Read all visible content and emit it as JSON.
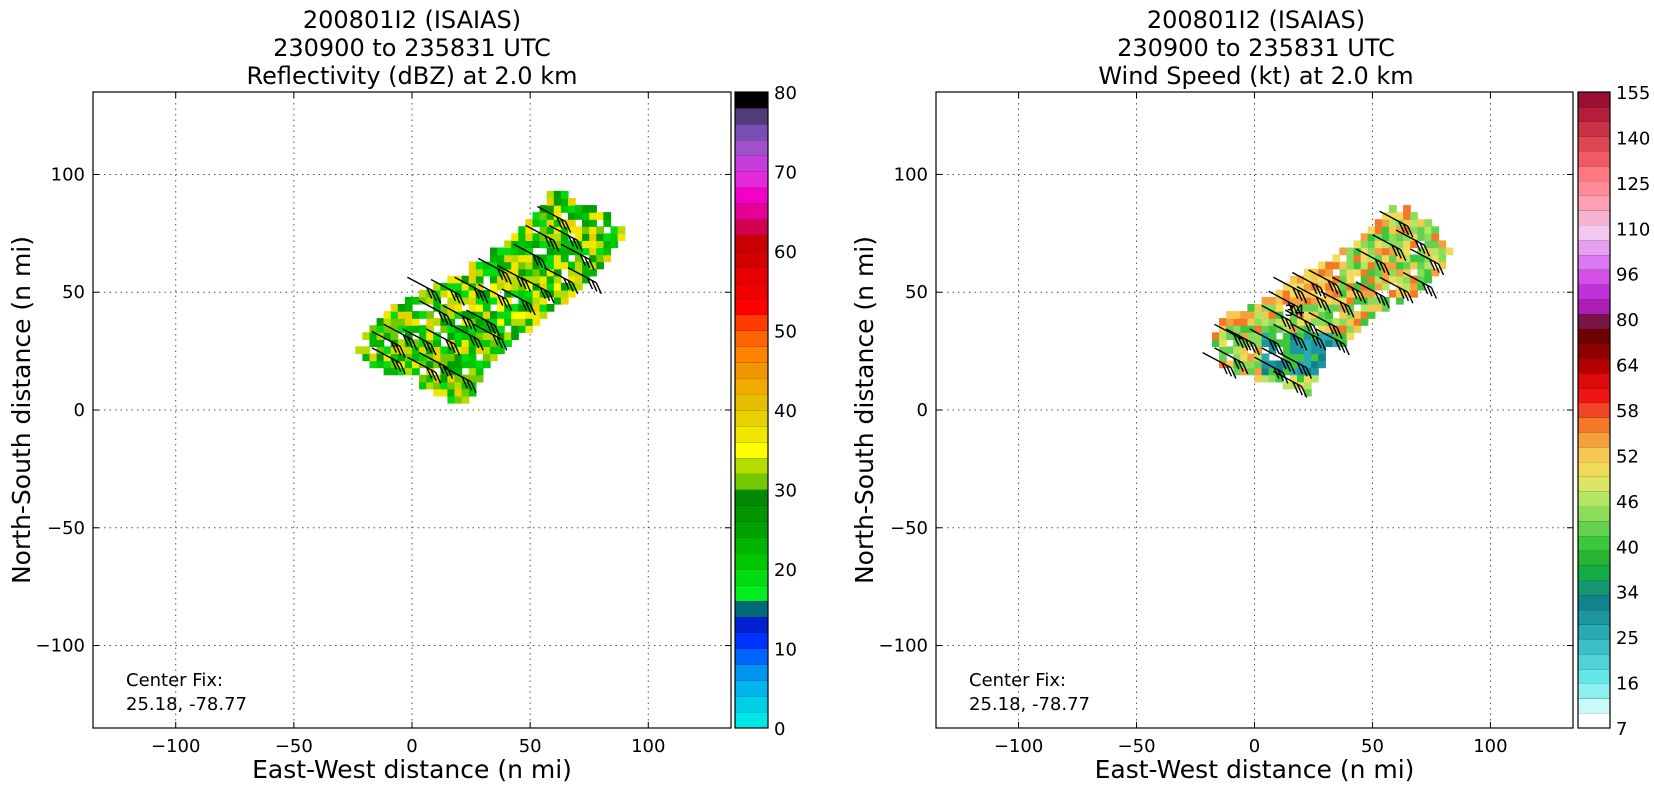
{
  "panels": [
    {
      "title_lines": [
        "200801I2 (ISAIAS)",
        "230900 to 235831 UTC",
        "Reflectivity (dBZ) at 2.0 km"
      ],
      "xlabel": "East-West distance (n mi)",
      "ylabel": "North-South distance (n mi)",
      "center_fix_label": "Center Fix:",
      "center_fix_value": "25.18, -78.77",
      "colorbar": {
        "ticks": [
          {
            "label": "80",
            "index": 16
          },
          {
            "label": "70",
            "index": 14
          },
          {
            "label": "60",
            "index": 12
          },
          {
            "label": "50",
            "index": 10
          },
          {
            "label": "40",
            "index": 8
          },
          {
            "label": "30",
            "index": 6
          },
          {
            "label": "20",
            "index": 4
          },
          {
            "label": "10",
            "index": 2
          },
          {
            "label": "0",
            "index": 0
          }
        ],
        "colors": [
          "#00e6e6",
          "#00cfe6",
          "#00b4f0",
          "#0096f0",
          "#0064ff",
          "#0032ff",
          "#0020d0",
          "#006a78",
          "#00ee20",
          "#00dc10",
          "#00c800",
          "#00b400",
          "#00a000",
          "#009600",
          "#008a00",
          "#74c800",
          "#b4dc00",
          "#ffff00",
          "#f0e600",
          "#e6d200",
          "#e6be00",
          "#f0aa00",
          "#f09600",
          "#ff8200",
          "#ff6400",
          "#ff3c00",
          "#ff0000",
          "#f00000",
          "#e60000",
          "#d20000",
          "#c80000",
          "#d20050",
          "#e60096",
          "#f000c8",
          "#e628dc",
          "#c83cdc",
          "#a050c8",
          "#7850b4",
          "#503c78",
          "#000000"
        ]
      },
      "annotation": ""
    },
    {
      "title_lines": [
        "200801I2 (ISAIAS)",
        "230900 to 235831 UTC",
        "Wind Speed (kt) at 2.0 km"
      ],
      "xlabel": "East-West distance (n mi)",
      "ylabel": "North-South distance (n mi)",
      "center_fix_label": "Center Fix:",
      "center_fix_value": "25.18, -78.77",
      "colorbar": {
        "ticks": [
          {
            "label": "155",
            "index": 25
          },
          {
            "label": "140",
            "index": 23
          },
          {
            "label": "125",
            "index": 21
          },
          {
            "label": "110",
            "index": 19
          },
          {
            "label": "96",
            "index": 17
          },
          {
            "label": "80",
            "index": 15
          },
          {
            "label": "64",
            "index": 13
          },
          {
            "label": "58",
            "index": 11
          },
          {
            "label": "52",
            "index": 9
          },
          {
            "label": "46",
            "index": 7
          },
          {
            "label": "40",
            "index": 5
          },
          {
            "label": "34",
            "index": 3
          },
          {
            "label": "25",
            "index": 1
          },
          {
            "label": "16",
            "index": 0
          },
          {
            "label": "7",
            "index": 0
          }
        ],
        "colors": [
          "#ffffff",
          "#c8fafa",
          "#8cf0f0",
          "#64e6e6",
          "#50d2d8",
          "#3cbec8",
          "#28aab4",
          "#1e96a0",
          "#14828c",
          "#14966e",
          "#14aa46",
          "#28b432",
          "#3cc83c",
          "#64d250",
          "#8cdc5a",
          "#b4e664",
          "#dce664",
          "#f0dc5a",
          "#f5c850",
          "#f5a03c",
          "#f57828",
          "#f04628",
          "#f01414",
          "#dc0a0a",
          "#b40000",
          "#8c0000",
          "#6e0000",
          "#781446",
          "#aa1eb4",
          "#be32dc",
          "#d250e6",
          "#dc78f0",
          "#e6a0f0",
          "#f0c8f0",
          "#f5b4d2",
          "#ffa0b4",
          "#ff8c96",
          "#ff7882",
          "#f05a64",
          "#dc4650",
          "#c83246",
          "#b41e3c",
          "#9a1034"
        ]
      },
      "annotation": "34"
    }
  ],
  "chart_data": [
    {
      "type": "heatmap",
      "title": "200801I2 (ISAIAS) 230900 to 235831 UTC Reflectivity (dBZ) at 2.0 km",
      "xlabel": "East-West distance (n mi)",
      "ylabel": "North-South distance (n mi)",
      "xlim": [
        -135,
        135
      ],
      "ylim": [
        -135,
        135
      ],
      "xticks": [
        -100,
        -50,
        0,
        50,
        100
      ],
      "yticks": [
        -100,
        -50,
        0,
        50,
        100
      ],
      "grid": true,
      "colorbar_range": [
        0,
        80
      ],
      "colorbar_unit": "dBZ",
      "center_fix": [
        25.18,
        -78.77
      ],
      "echo_region": [
        [
          -25,
          22
        ],
        [
          -20,
          32
        ],
        [
          -10,
          42
        ],
        [
          5,
          50
        ],
        [
          20,
          58
        ],
        [
          35,
          68
        ],
        [
          50,
          80
        ],
        [
          58,
          92
        ],
        [
          70,
          88
        ],
        [
          90,
          76
        ],
        [
          85,
          68
        ],
        [
          75,
          55
        ],
        [
          65,
          45
        ],
        [
          55,
          38
        ],
        [
          45,
          30
        ],
        [
          35,
          22
        ],
        [
          28,
          15
        ],
        [
          25,
          5
        ],
        [
          20,
          0
        ],
        [
          10,
          4
        ],
        [
          0,
          10
        ],
        [
          -10,
          14
        ],
        [
          -20,
          18
        ]
      ],
      "barbs": [
        [
          65,
          80
        ],
        [
          70,
          72
        ],
        [
          60,
          72
        ],
        [
          75,
          64
        ],
        [
          55,
          64
        ],
        [
          78,
          54
        ],
        [
          68,
          54
        ],
        [
          58,
          50
        ],
        [
          48,
          55
        ],
        [
          40,
          58
        ],
        [
          50,
          45
        ],
        [
          40,
          47
        ],
        [
          30,
          50
        ],
        [
          20,
          49
        ],
        [
          10,
          50
        ],
        [
          35,
          36
        ],
        [
          25,
          38
        ],
        [
          15,
          40
        ],
        [
          38,
          30
        ],
        [
          28,
          30
        ],
        [
          18,
          28
        ],
        [
          8,
          28
        ],
        [
          0,
          30
        ],
        [
          -5,
          27
        ],
        [
          15,
          18
        ],
        [
          10,
          16
        ],
        [
          25,
          12
        ],
        [
          -5,
          20
        ]
      ]
    },
    {
      "type": "heatmap",
      "title": "200801I2 (ISAIAS) 230900 to 235831 UTC Wind Speed (kt) at 2.0 km",
      "xlabel": "East-West distance (n mi)",
      "ylabel": "North-South distance (n mi)",
      "xlim": [
        -135,
        135
      ],
      "ylim": [
        -135,
        135
      ],
      "xticks": [
        -100,
        -50,
        0,
        50,
        100
      ],
      "yticks": [
        -100,
        -50,
        0,
        50,
        100
      ],
      "grid": true,
      "colorbar_range": [
        7,
        155
      ],
      "colorbar_unit": "kt",
      "center_fix": [
        25.18,
        -78.77
      ],
      "echo_region": [
        [
          -18,
          32
        ],
        [
          -15,
          38
        ],
        [
          5,
          46
        ],
        [
          15,
          55
        ],
        [
          30,
          62
        ],
        [
          45,
          72
        ],
        [
          55,
          82
        ],
        [
          60,
          87
        ],
        [
          70,
          82
        ],
        [
          82,
          66
        ],
        [
          75,
          55
        ],
        [
          65,
          46
        ],
        [
          50,
          40
        ],
        [
          42,
          32
        ],
        [
          35,
          26
        ],
        [
          28,
          20
        ],
        [
          22,
          5
        ],
        [
          15,
          8
        ],
        [
          5,
          10
        ],
        [
          -5,
          13
        ],
        [
          -15,
          18
        ],
        [
          -18,
          25
        ]
      ],
      "barbs": [
        [
          65,
          78
        ],
        [
          72,
          70
        ],
        [
          62,
          68
        ],
        [
          78,
          62
        ],
        [
          55,
          62
        ],
        [
          75,
          52
        ],
        [
          65,
          50
        ],
        [
          55,
          48
        ],
        [
          45,
          50
        ],
        [
          35,
          53
        ],
        [
          28,
          52
        ],
        [
          20,
          50
        ],
        [
          40,
          44
        ],
        [
          30,
          46
        ],
        [
          18,
          44
        ],
        [
          35,
          35
        ],
        [
          25,
          36
        ],
        [
          15,
          38
        ],
        [
          38,
          28
        ],
        [
          28,
          30
        ],
        [
          20,
          30
        ],
        [
          10,
          28
        ],
        [
          0,
          28
        ],
        [
          -5,
          30
        ],
        [
          15,
          20
        ],
        [
          22,
          18
        ],
        [
          12,
          16
        ],
        [
          -5,
          20
        ],
        [
          -10,
          18
        ],
        [
          20,
          10
        ]
      ],
      "annotations": [
        {
          "text": "34",
          "x": 17,
          "y": 40
        }
      ]
    }
  ]
}
